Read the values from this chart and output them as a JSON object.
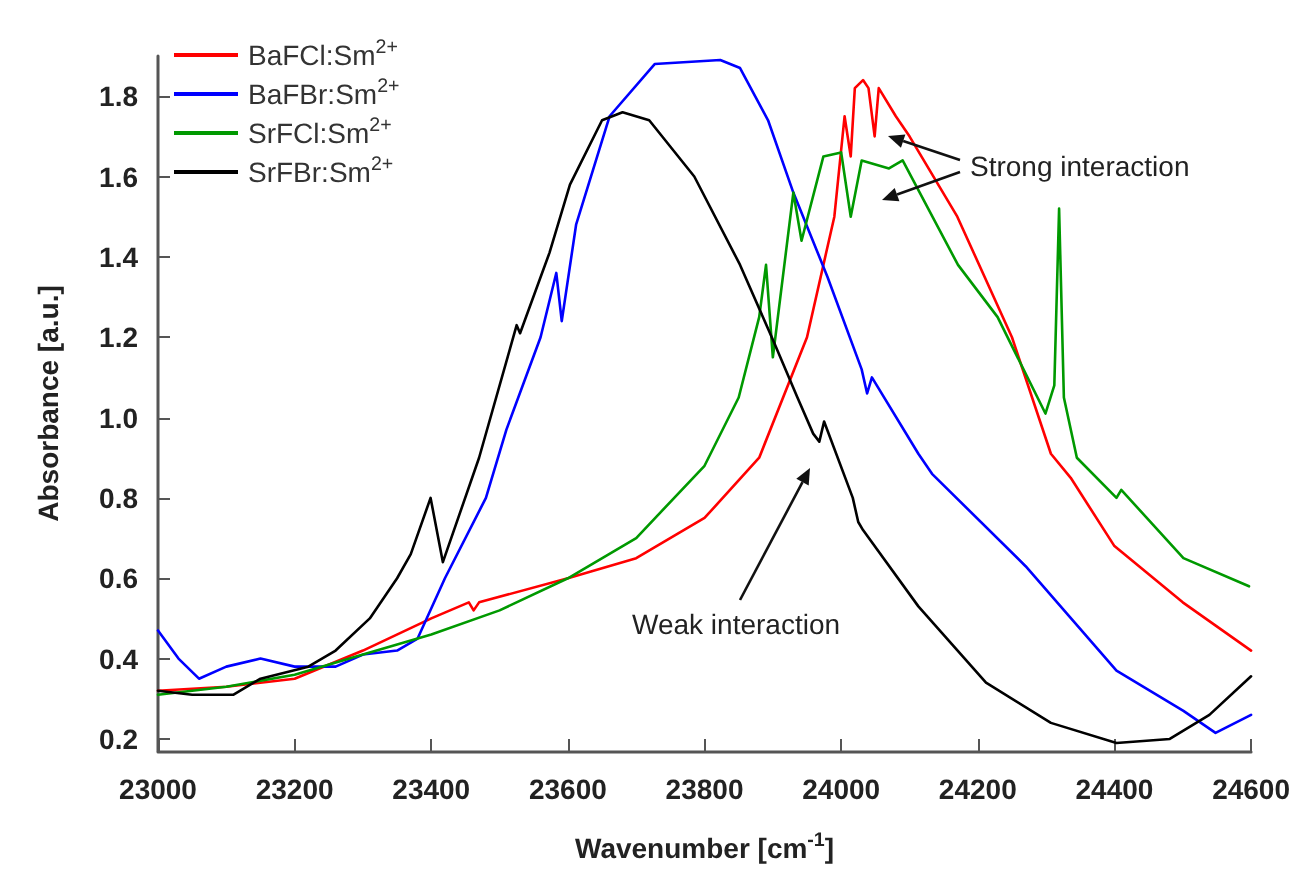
{
  "chart_data": {
    "type": "line",
    "xlabel": "Wavenumber [cm$^{-1}$]",
    "ylabel": "Absorbance [a.u.]",
    "xlim": [
      23000,
      24600
    ],
    "xticks": [
      23000,
      23200,
      23400,
      23600,
      23800,
      24000,
      24200,
      24400,
      24600
    ],
    "ylim": [
      0.17,
      1.9
    ],
    "yticks": [
      0.2,
      0.4,
      0.6,
      0.8,
      {
        "value": 1,
        "label": "1.0"
      },
      1.2,
      1.4,
      1.6,
      1.8
    ],
    "grid": false,
    "legend": "top left",
    "marker": "none",
    "line_style": "solid",
    "annotations": [
      "Strong interaction",
      "Weak interaction"
    ],
    "series": [
      {
        "name": "BaFCl:Sm$^{2+}$",
        "color": "#ff0000",
        "x": [
          23000,
          23100,
          23200,
          23300,
          23400,
          23455,
          23462,
          23470,
          23600,
          23700,
          23800,
          23880,
          23950,
          23990,
          24005,
          24014,
          24020,
          24032,
          24040,
          24049,
          24055,
          24080,
          24100,
          24170,
          24250,
          24307,
          24336,
          24400,
          24500,
          24600
        ],
        "values": [
          0.32,
          0.33,
          0.35,
          0.42,
          0.5,
          0.54,
          0.52,
          0.54,
          0.6,
          0.65,
          0.75,
          0.9,
          1.2,
          1.5,
          1.75,
          1.65,
          1.82,
          1.84,
          1.82,
          1.7,
          1.82,
          1.75,
          1.7,
          1.5,
          1.2,
          0.91,
          0.85,
          0.68,
          0.54,
          0.42
        ]
      },
      {
        "name": "BaFBr:Sm$^{2+}$",
        "color": "#0000ff",
        "x": [
          23000,
          23030,
          23060,
          23100,
          23150,
          23200,
          23260,
          23300,
          23350,
          23380,
          23420,
          23480,
          23510,
          23560,
          23583,
          23591,
          23612,
          23661,
          23727,
          23823,
          23852,
          23893,
          23930,
          23980,
          24030,
          24038,
          24045,
          24113,
          24133,
          24270,
          24403,
          24501,
          24548,
          24600
        ],
        "values": [
          0.47,
          0.4,
          0.35,
          0.38,
          0.4,
          0.38,
          0.38,
          0.41,
          0.42,
          0.45,
          0.6,
          0.8,
          0.97,
          1.2,
          1.36,
          1.24,
          1.48,
          1.75,
          1.88,
          1.89,
          1.87,
          1.74,
          1.56,
          1.35,
          1.12,
          1.06,
          1.1,
          0.91,
          0.86,
          0.63,
          0.37,
          0.27,
          0.215,
          0.26
        ]
      },
      {
        "name": "SrFCl:Sm$^{2+}$",
        "color": "#009900",
        "x": [
          23000,
          23100,
          23200,
          23300,
          23400,
          23500,
          23600,
          23700,
          23800,
          23850,
          23880,
          23890,
          23900,
          23930,
          23942,
          23974,
          24000,
          24014,
          24030,
          24070,
          24090,
          24171,
          24229,
          24299,
          24312,
          24319,
          24326,
          24345,
          24403,
          24410,
          24501,
          24597
        ],
        "values": [
          0.31,
          0.33,
          0.36,
          0.41,
          0.46,
          0.52,
          0.6,
          0.7,
          0.88,
          1.05,
          1.25,
          1.38,
          1.15,
          1.56,
          1.44,
          1.65,
          1.66,
          1.5,
          1.64,
          1.62,
          1.64,
          1.38,
          1.25,
          1.01,
          1.08,
          1.52,
          1.05,
          0.9,
          0.8,
          0.82,
          0.65,
          0.58
        ]
      },
      {
        "name": "SrFBr:Sm$^{2+}$",
        "color": "#000000",
        "x": [
          23000,
          23050,
          23110,
          23150,
          23220,
          23260,
          23310,
          23350,
          23370,
          23399,
          23417,
          23470,
          23525,
          23530,
          23573,
          23603,
          23650,
          23680,
          23719,
          23785,
          23852,
          23901,
          23936,
          23959,
          23968,
          23975,
          24017,
          24025,
          24032,
          24113,
          24212,
          24307,
          24403,
          24481,
          24539,
          24600
        ],
        "values": [
          0.32,
          0.31,
          0.31,
          0.35,
          0.38,
          0.42,
          0.5,
          0.6,
          0.66,
          0.8,
          0.64,
          0.9,
          1.23,
          1.21,
          1.41,
          1.58,
          1.74,
          1.76,
          1.74,
          1.6,
          1.38,
          1.19,
          1.05,
          0.96,
          0.94,
          0.99,
          0.8,
          0.74,
          0.72,
          0.53,
          0.34,
          0.24,
          0.19,
          0.2,
          0.26,
          0.356
        ]
      }
    ]
  }
}
